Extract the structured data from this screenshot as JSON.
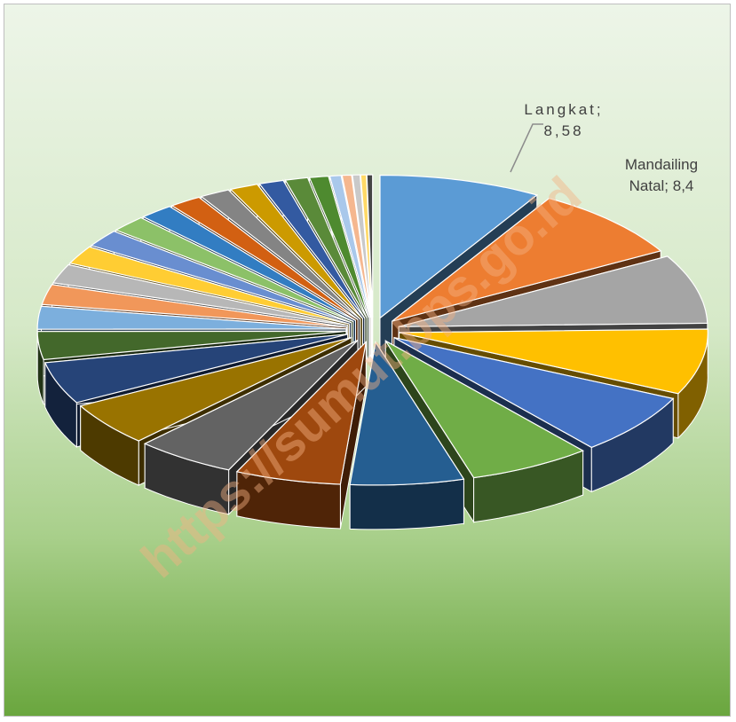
{
  "chart_data": {
    "type": "pie3d",
    "watermark": "https://sumut.bps.go.id",
    "label_separator": "; ",
    "categories": [
      "Langkat",
      "Mandailing Natal",
      null,
      null,
      null,
      null,
      null,
      null,
      null,
      null,
      null,
      null,
      null,
      null,
      null,
      null,
      null,
      null,
      null,
      null,
      null,
      null,
      null,
      null,
      null,
      null,
      null,
      null,
      null,
      null
    ],
    "values": [
      8.58,
      8.4,
      7.9,
      7.5,
      7.0,
      6.5,
      6.0,
      5.6,
      5.3,
      5.0,
      4.8,
      3.2,
      2.6,
      2.3,
      2.2,
      2.1,
      2.0,
      1.9,
      1.8,
      1.7,
      1.6,
      1.5,
      1.3,
      1.2,
      1.0,
      0.6,
      0.5,
      0.4,
      0.3,
      0.3
    ],
    "value_labels": [
      "8,58",
      "8,4",
      null,
      null,
      null,
      null,
      null,
      null,
      null,
      null,
      null,
      null,
      null,
      null,
      null,
      null,
      null,
      null,
      null,
      null,
      null,
      null,
      null,
      null,
      null,
      null,
      null,
      null,
      null,
      null
    ],
    "colors": [
      "#5b9bd5",
      "#ed7d31",
      "#a5a5a5",
      "#ffc000",
      "#4472c4",
      "#70ad47",
      "#255e91",
      "#9e480e",
      "#636363",
      "#997300",
      "#264478",
      "#43682b",
      "#7cafdd",
      "#f1975a",
      "#b7b7b7",
      "#ffcd33",
      "#698ed0",
      "#8cc168",
      "#327dc2",
      "#d26012",
      "#848484",
      "#cc9a00",
      "#335aa1",
      "#5a8a39",
      "#4e8a2f",
      "#a9c8eb",
      "#f5b78f",
      "#c9c9c9",
      "#ffd966",
      "#444444"
    ]
  }
}
